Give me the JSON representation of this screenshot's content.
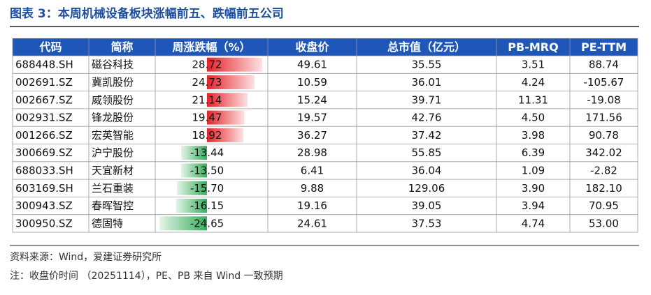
{
  "title": "图表 3：本周机械设备板块涨幅前五、跌幅前五公司",
  "table": {
    "headers": [
      "代码",
      "简称",
      "周涨跌幅（%）",
      "收盘价",
      "总市值（亿元）",
      "PB-MRQ",
      "PE-TTM"
    ],
    "rows": [
      [
        "688448.SH",
        "磁谷科技",
        "28.72",
        "49.61",
        "35.55",
        "3.51",
        "88.74"
      ],
      [
        "002691.SZ",
        "冀凯股份",
        "24.73",
        "10.59",
        "36.01",
        "4.24",
        "-105.67"
      ],
      [
        "002667.SZ",
        "威领股份",
        "21.14",
        "15.24",
        "39.71",
        "11.31",
        "-19.08"
      ],
      [
        "002931.SZ",
        "锋龙股份",
        "19.47",
        "19.57",
        "42.76",
        "4.50",
        "171.56"
      ],
      [
        "001266.SZ",
        "宏英智能",
        "18.92",
        "36.27",
        "37.42",
        "3.98",
        "90.78"
      ],
      [
        "300669.SZ",
        "沪宁股份",
        "-13.44",
        "28.98",
        "55.85",
        "6.39",
        "342.02"
      ],
      [
        "688033.SH",
        "天宜新材",
        "-13.50",
        "6.41",
        "36.04",
        "1.09",
        "-2.82"
      ],
      [
        "603169.SH",
        "兰石重装",
        "-15.70",
        "9.88",
        "129.06",
        "3.90",
        "182.10"
      ],
      [
        "300943.SZ",
        "春晖智控",
        "-16.15",
        "19.16",
        "39.05",
        "3.94",
        "70.95"
      ],
      [
        "300950.SZ",
        "德固特",
        "-24.65",
        "24.61",
        "37.53",
        "4.74",
        "53.00"
      ]
    ]
  },
  "source": "资料来源：Wind，爱建证券研究所",
  "note": "注：收盘价时间 （20251114），PE、PB 来自 Wind 一致预期"
}
